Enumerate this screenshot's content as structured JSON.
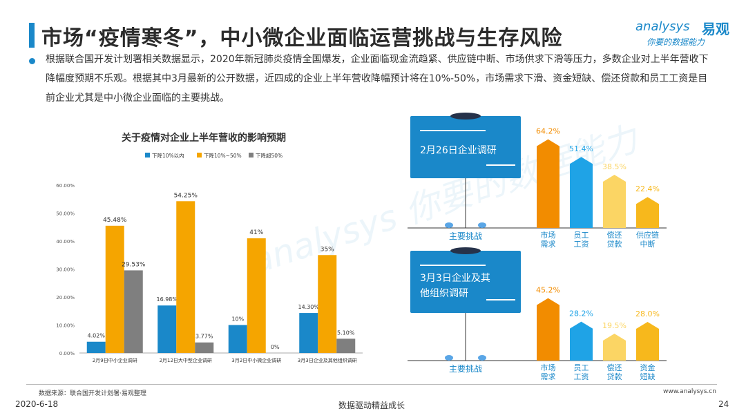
{
  "header": {
    "title": "市场“疫情寒冬”，中小微企业面临运营挑战与生存风险",
    "logo_en": "analysys",
    "logo_cn": "易观",
    "logo_slogan": "你要的数据能力"
  },
  "body_text": "根据联合国开发计划署相关数据显示，2020年新冠肺炎疫情全国爆发，企业面临现金流趋紧、供应链中断、市场供求下滑等压力，多数企业对上半年营收下降幅度预期不乐观。根据其中3月最新的公开数据，近四成的企业上半年营收降幅预计将在10%-50%，市场需求下滑、资金短缺、偿还贷款和员工工资是目前企业尤其是中小微企业面临的主要挑战。",
  "colors": {
    "blue": "#1a88c9",
    "orange": "#f5a500",
    "gray": "#7f7f7f",
    "barOrange": "#f28c00",
    "barBlue": "#1fa3e6",
    "barYellow": "#fbd564",
    "barGold": "#f7b81c"
  },
  "chart_data": [
    {
      "type": "bar",
      "title": "关于疫情对企业上半年营收的影响预期",
      "categories": [
        "2月9日中小企业调研",
        "2月12日大中型企业调研",
        "3月2日中小微企业调研",
        "3月3日企业及其他组织调研"
      ],
      "series": [
        {
          "name": "下降10%以内",
          "values": [
            4.02,
            16.98,
            10,
            14.3
          ],
          "labels": [
            "4.02%",
            "16.98%",
            "10%",
            "14.30%"
          ]
        },
        {
          "name": "下降10%~50%",
          "values": [
            45.48,
            54.25,
            41,
            35
          ],
          "labels": [
            "45.48%",
            "54.25%",
            "41%",
            "35%"
          ]
        },
        {
          "name": "下降超50%",
          "values": [
            29.53,
            3.77,
            0,
            5.1
          ],
          "labels": [
            "29.53%",
            "3.77%",
            "0%",
            "5.10%"
          ]
        }
      ],
      "yticks": [
        "0.00%",
        "10.00%",
        "20.00%",
        "30.00%",
        "40.00%",
        "50.00%",
        "60.00%"
      ],
      "ylim": [
        0,
        60
      ],
      "legend": "top"
    },
    {
      "type": "bar",
      "title": "2月26日企业调研",
      "axis_label": "主要挑战",
      "categories": [
        "市场需求",
        "员工工资",
        "偿还贷款",
        "供应链中断"
      ],
      "category_lines": [
        [
          "市场",
          "需求"
        ],
        [
          "员工",
          "工资"
        ],
        [
          "偿还",
          "贷款"
        ],
        [
          "供应链",
          "中断"
        ]
      ],
      "values": [
        64.2,
        51.4,
        38.5,
        22.4
      ],
      "labels": [
        "64.2%",
        "51.4%",
        "38.5%",
        "22.4%"
      ],
      "ylim": [
        0,
        70
      ]
    },
    {
      "type": "bar",
      "title": "3月3日企业及其他组织调研",
      "title_lines": [
        "3月3日企业及其",
        "他组织调研"
      ],
      "axis_label": "主要挑战",
      "categories": [
        "市场需求",
        "员工工资",
        "偿还贷款",
        "资金短缺"
      ],
      "category_lines": [
        [
          "市场",
          "需求"
        ],
        [
          "员工",
          "工资"
        ],
        [
          "偿还",
          "贷款"
        ],
        [
          "资金",
          "短缺"
        ]
      ],
      "values": [
        45.2,
        28.2,
        19.5,
        28.0
      ],
      "labels": [
        "45.2%",
        "28.2%",
        "19.5%",
        "28.0%"
      ],
      "ylim": [
        0,
        70
      ]
    }
  ],
  "footer": {
    "source": "数据来源：联合国开发计划署·易观整理",
    "website": "www.analysys.cn",
    "date": "2020-6-18",
    "center": "数据驱动精益成长",
    "page": "24"
  }
}
